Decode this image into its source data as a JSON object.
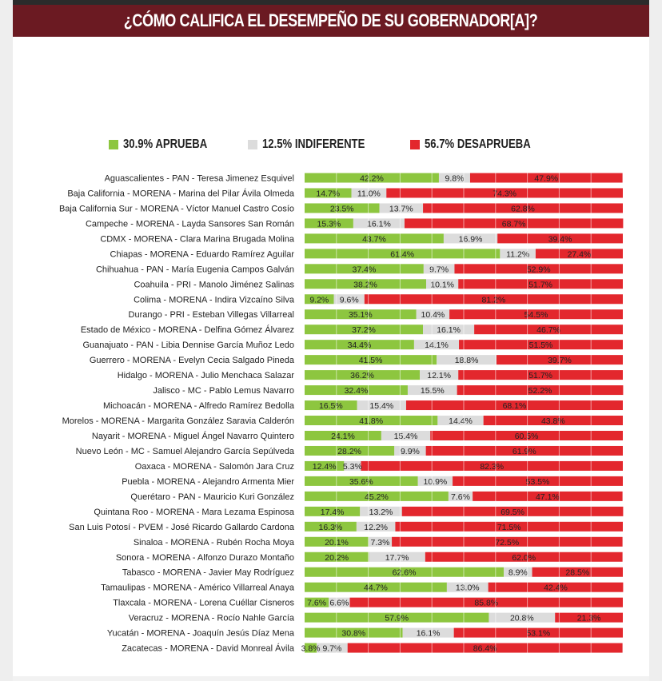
{
  "page": {
    "title": "¿CÓMO CALIFICA EL DESEMPEÑO DE SU GOBERNADOR[A]?"
  },
  "colors": {
    "aprueba": "#8dc63f",
    "indiferente": "#dcdcdc",
    "desaprueba": "#e3272d",
    "title_bg": "#6b1a22"
  },
  "chart_data": {
    "type": "bar",
    "stacked": true,
    "orientation": "horizontal",
    "title": "¿CÓMO CALIFICA EL DESEMPEÑO DE SU GOBERNADOR[A]?",
    "legend": [
      {
        "label": "30.9% APRUEBA",
        "color": "#8dc63f"
      },
      {
        "label": "12.5% INDIFERENTE",
        "color": "#dcdcdc"
      },
      {
        "label": "56.7% DESAPRUEBA",
        "color": "#e3272d"
      }
    ],
    "legend_position": "top",
    "grid": true,
    "xlim": [
      0,
      100
    ],
    "categories": [
      "Aguascalientes - PAN - Teresa Jimenez Esquivel",
      "Baja California - MORENA - Marina del Pilar Ávila Olmeda",
      "Baja California Sur - MORENA - Víctor Manuel Castro Cosío",
      "Campeche - MORENA - Layda Sansores San Román",
      "CDMX - MORENA - Clara Marina Brugada Molina",
      "Chiapas - MORENA - Eduardo Ramírez Aguilar",
      "Chihuahua - PAN - María Eugenia Campos Galván",
      "Coahuila - PRI - Manolo Jiménez Salinas",
      "Colima - MORENA - Indira Vizcaíno Silva",
      "Durango - PRI - Esteban Villegas Villarreal",
      "Estado de México - MORENA - Delfina Gómez Álvarez",
      "Guanajuato - PAN - Libia Dennise García Muñoz Ledo",
      "Guerrero - MORENA - Evelyn Cecia Salgado Pineda",
      "Hidalgo - MORENA - Julio Menchaca Salazar",
      "Jalisco - MC - Pablo Lemus Navarro",
      "Michoacán - MORENA - Alfredo Ramírez Bedolla",
      "Morelos - MORENA - Margarita González Saravia Calderón",
      "Nayarit - MORENA - Miguel Ángel Navarro Quintero",
      "Nuevo León - MC - Samuel Alejandro García Sepúlveda",
      "Oaxaca - MORENA - Salomón Jara Cruz",
      "Puebla - MORENA - Alejandro Armenta Mier",
      "Querétaro - PAN - Mauricio Kuri González",
      "Quintana Roo - MORENA - Mara Lezama Espinosa",
      "San Luis Potosí - PVEM - José Ricardo Gallardo Cardona",
      "Sinaloa - MORENA - Rubén Rocha Moya",
      "Sonora - MORENA - Alfonzo Durazo Montaño",
      "Tabasco - MORENA - Javier May Rodríguez",
      "Tamaulipas - MORENA - Américo Villarreal Anaya",
      "Tlaxcala - MORENA - Lorena Cuéllar Cisneros",
      "Veracruz - MORENA - Rocío Nahle García",
      "Yucatán - MORENA - Joaquín Jesús Díaz Mena",
      "Zacatecas - MORENA - David Monreal Ávila"
    ],
    "series": [
      {
        "name": "APRUEBA",
        "color": "#8dc63f",
        "values": [
          42.2,
          14.7,
          23.5,
          15.3,
          43.7,
          61.4,
          37.4,
          38.2,
          9.2,
          35.1,
          37.2,
          34.4,
          41.5,
          36.2,
          32.4,
          16.5,
          41.8,
          24.1,
          28.2,
          12.4,
          35.6,
          45.2,
          17.4,
          16.3,
          20.1,
          20.2,
          62.6,
          44.7,
          7.6,
          57.9,
          30.8,
          3.8
        ],
        "labels": [
          "42.2%",
          "14.7%",
          "23.5%",
          "15.3%",
          "43.7%",
          "61.4%",
          "37.4%",
          "38.2%",
          "9.2%",
          "35.1%",
          "37.2%",
          "34.4%",
          "41.5%",
          "36.2%",
          "32.4%",
          "16.5%",
          "41.8%",
          "24.1%",
          "28.2%",
          "12.4%",
          "35.6%",
          "45.2%",
          "17.4%",
          "16.3%",
          "20.1%",
          "20.2%",
          "62.6%",
          "44.7%",
          "7.6%",
          "57.9%",
          "30.8%",
          "3.8%"
        ]
      },
      {
        "name": "INDIFERENTE",
        "color": "#dcdcdc",
        "values": [
          9.8,
          11.0,
          13.7,
          16.1,
          16.9,
          11.2,
          9.7,
          10.1,
          9.6,
          10.4,
          16.1,
          14.1,
          18.8,
          12.1,
          15.5,
          15.4,
          14.4,
          15.4,
          9.9,
          5.3,
          10.9,
          7.6,
          13.2,
          12.2,
          7.3,
          17.7,
          8.9,
          13.0,
          6.6,
          20.8,
          16.1,
          9.7
        ],
        "labels": [
          "9.8%",
          "11.0%",
          "13.7%",
          "16.1%",
          "16.9%",
          "11.2%",
          "9.7%",
          "10.1%",
          "9.6%",
          "10.4%",
          "16.1%",
          "14.1%",
          "18.8%",
          "12.1%",
          "15.5%",
          "15.4%",
          "14.4%",
          "15.4%",
          "9.9%",
          "5.3%",
          "10.9%",
          "7.6%",
          "13.2%",
          "12.2%",
          "7.3%",
          "17.7%",
          "8.9%",
          "13.0%",
          "6.6%",
          "20.8%",
          "16.1%",
          "9.7%"
        ]
      },
      {
        "name": "DESAPRUEBA",
        "color": "#e3272d",
        "values": [
          47.9,
          74.3,
          62.8,
          68.7,
          39.4,
          27.4,
          52.9,
          51.7,
          81.2,
          54.5,
          46.7,
          51.5,
          39.7,
          51.7,
          52.2,
          68.1,
          43.8,
          60.5,
          61.9,
          82.3,
          53.5,
          47.1,
          69.5,
          71.5,
          72.5,
          62.0,
          28.5,
          42.4,
          85.8,
          21.3,
          53.1,
          86.4
        ],
        "labels": [
          "47.9%",
          "74.3%",
          "62.8%",
          "68.7%",
          "39.4%",
          "27.4%",
          "52.9%",
          "51.7%",
          "81.2%",
          "54.5%",
          "46.7%",
          "51.5%",
          "39.7%",
          "51.7%",
          "52.2%",
          "68.1%",
          "43.8%",
          "60.5%",
          "61.9%",
          "82.3%",
          "53.5%",
          "47.1%",
          "69.5%",
          "71.5%",
          "72.5%",
          "62.0%",
          "28.5%",
          "42.4%",
          "85.8%",
          "21.3%",
          "53.1%",
          "86.4%"
        ]
      }
    ]
  }
}
